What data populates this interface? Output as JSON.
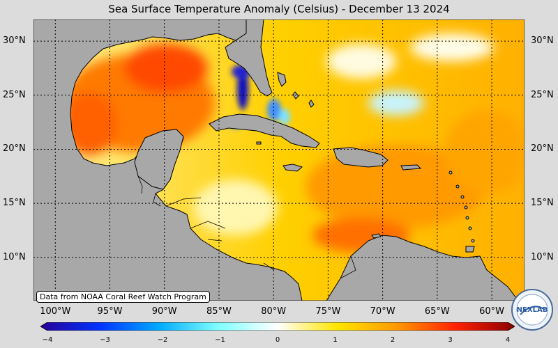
{
  "title": "Sea Surface Temperature Anomaly (Celsius) - December 13 2024",
  "credit": "Data from NOAA Coral Reef Watch Program",
  "logo_text": "NEXLAB",
  "map": {
    "lon_range": [
      -102,
      -57
    ],
    "lat_range": [
      6,
      32
    ],
    "lat_ticks": [
      "30°N",
      "25°N",
      "20°N",
      "15°N",
      "10°N"
    ],
    "lon_ticks": [
      "100°W",
      "95°W",
      "90°W",
      "85°W",
      "80°W",
      "75°W",
      "70°W",
      "65°W",
      "60°W"
    ],
    "land_color": "#a8a8a8",
    "grid": "dotted black"
  },
  "colorbar": {
    "min": -4,
    "max": 4,
    "ticks": [
      "−4",
      "−3",
      "−2",
      "−1",
      "0",
      "1",
      "2",
      "3",
      "4"
    ],
    "colors": [
      "#2a0097",
      "#0033ff",
      "#00aaff",
      "#80ffff",
      "#ffffff",
      "#ffe600",
      "#ff9900",
      "#ff2200",
      "#8b0000"
    ]
  }
}
